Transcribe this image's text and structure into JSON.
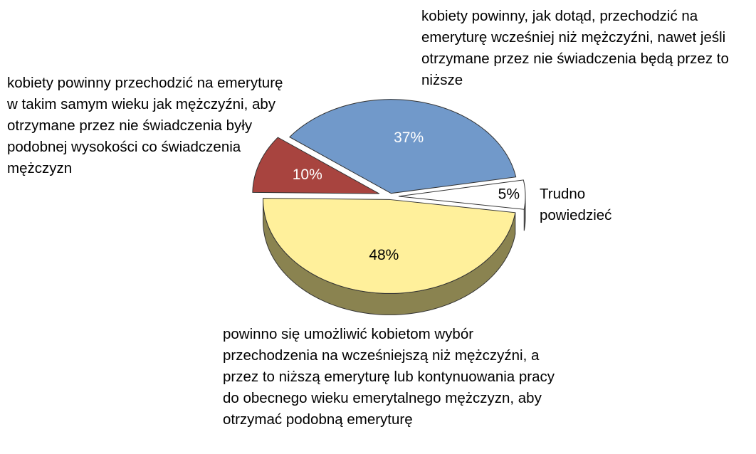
{
  "chart_data": {
    "type": "pie",
    "categories": [
      "kobiety powinny, jak dotąd, przechodzić na emeryturę wcześniej niż mężczyźni, nawet jeśli otrzymane przez nie świadczenia będą przez to niższe",
      "Trudno powiedzieć",
      "powinno się umożliwić kobietom wybór przechodzenia na wcześniejszą niż mężczyźni, a przez to niższą emeryturę lub kontynuowania pracy do obecnego wieku emerytalnego mężczyzn, aby otrzymać podobną emeryturę",
      "kobiety powinny przechodzić na emeryturę w takim samym wieku jak mężczyźni, aby otrzymane przez nie świadczenia były podobnej wysokości co świadczenia mężczyzn"
    ],
    "values": [
      37,
      5,
      48,
      10
    ],
    "value_labels": [
      "37%",
      "5%",
      "48%",
      "10%"
    ],
    "colors": [
      "#7199ca",
      "#ffffff",
      "#fff09b",
      "#a8443f"
    ],
    "side_colors": [
      "#4b6b94",
      "#8a8a8a",
      "#8a8350",
      "#6a2826"
    ],
    "label_colors": [
      "#ffffff",
      "#000000",
      "#000000",
      "#ffffff"
    ]
  }
}
